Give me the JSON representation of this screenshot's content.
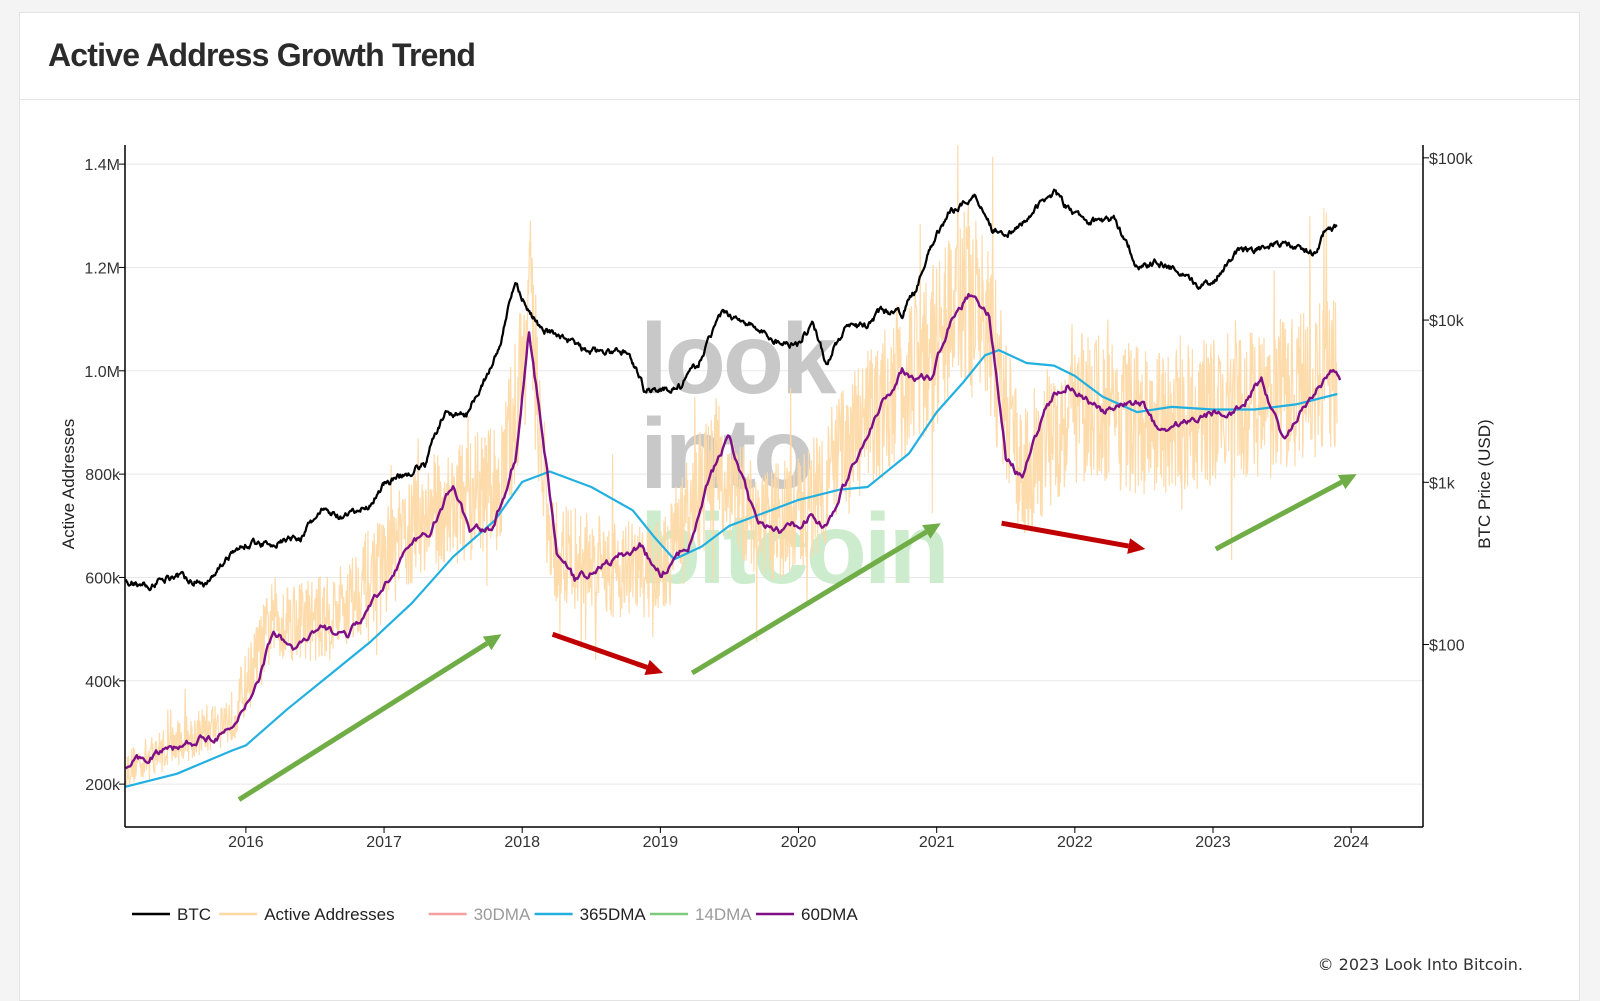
{
  "page": {
    "title": "Active Address Growth Trend",
    "copyright": "© 2023 Look Into Bitcoin."
  },
  "watermark": [
    "look",
    "into",
    "bitcoin"
  ],
  "colors": {
    "btc": "#000000",
    "active_addresses": "#fdd9a6",
    "dma30": "#f4a0a0",
    "dma365": "#22b0e0",
    "dma14": "#7fc97f",
    "dma60": "#7e0f86",
    "arrow_up": "#70ad47",
    "arrow_down": "#c00000",
    "grid": "#e8e8e8",
    "watermark_gray": "#c8c8c8",
    "watermark_green": "#cdeccd"
  },
  "chart_data": {
    "type": "line",
    "title": "Active Address Growth Trend",
    "xlabel": "",
    "ylabel": "Active Addresses",
    "y2label": "BTC Price (USD)",
    "x_ticks": [
      "2016",
      "2017",
      "2018",
      "2019",
      "2020",
      "2021",
      "2022",
      "2023",
      "2024"
    ],
    "x_range": [
      2015.125,
      2024.52
    ],
    "y_ticks": [
      200000,
      400000,
      600000,
      800000,
      1000000,
      1200000,
      1400000
    ],
    "y_tick_labels": [
      "200k",
      "400k",
      "600k",
      "800k",
      "1.0M",
      "1.2M",
      "1.4M"
    ],
    "ylim": [
      117000,
      1437000
    ],
    "y2_ticks": [
      100,
      1000,
      10000,
      100000
    ],
    "y2_tick_labels": [
      "$100",
      "$1k",
      "$10k",
      "$100k"
    ],
    "y2lim_log": [
      7.5,
      120000
    ],
    "y2_scale": "log",
    "grid": true,
    "legend_position": "bottom-left",
    "legend": [
      {
        "name": "BTC",
        "key": "btc",
        "visible": true
      },
      {
        "name": "Active Addresses",
        "key": "active_addresses",
        "visible": true
      },
      {
        "name": "30DMA",
        "key": "dma30",
        "visible": false
      },
      {
        "name": "365DMA",
        "key": "dma365",
        "visible": true
      },
      {
        "name": "14DMA",
        "key": "dma14",
        "visible": false
      },
      {
        "name": "60DMA",
        "key": "dma60",
        "visible": true
      }
    ],
    "series": [
      {
        "name": "BTC",
        "axis": "y2",
        "points": [
          [
            2015.13,
            245
          ],
          [
            2015.3,
            230
          ],
          [
            2015.5,
            270
          ],
          [
            2015.7,
            235
          ],
          [
            2015.85,
            330
          ],
          [
            2016.0,
            420
          ],
          [
            2016.2,
            420
          ],
          [
            2016.4,
            460
          ],
          [
            2016.55,
            670
          ],
          [
            2016.7,
            600
          ],
          [
            2016.9,
            720
          ],
          [
            2017.0,
            980
          ],
          [
            2017.15,
            1120
          ],
          [
            2017.3,
            1300
          ],
          [
            2017.45,
            2700
          ],
          [
            2017.6,
            2600
          ],
          [
            2017.75,
            4600
          ],
          [
            2017.85,
            7000
          ],
          [
            2017.95,
            17000
          ],
          [
            2018.05,
            11000
          ],
          [
            2018.15,
            8500
          ],
          [
            2018.3,
            8000
          ],
          [
            2018.45,
            6500
          ],
          [
            2018.6,
            6300
          ],
          [
            2018.75,
            6500
          ],
          [
            2018.88,
            3800
          ],
          [
            2019.0,
            3700
          ],
          [
            2019.15,
            3900
          ],
          [
            2019.3,
            5800
          ],
          [
            2019.45,
            11000
          ],
          [
            2019.6,
            10000
          ],
          [
            2019.75,
            8200
          ],
          [
            2019.85,
            7300
          ],
          [
            2020.0,
            7200
          ],
          [
            2020.1,
            9500
          ],
          [
            2020.2,
            5300
          ],
          [
            2020.35,
            9000
          ],
          [
            2020.5,
            9200
          ],
          [
            2020.6,
            11500
          ],
          [
            2020.75,
            11000
          ],
          [
            2020.85,
            15500
          ],
          [
            2020.97,
            29000
          ],
          [
            2021.1,
            47000
          ],
          [
            2021.28,
            58000
          ],
          [
            2021.4,
            37000
          ],
          [
            2021.55,
            34000
          ],
          [
            2021.7,
            47000
          ],
          [
            2021.85,
            62000
          ],
          [
            2021.95,
            48000
          ],
          [
            2022.1,
            40000
          ],
          [
            2022.28,
            42000
          ],
          [
            2022.45,
            21000
          ],
          [
            2022.6,
            23000
          ],
          [
            2022.75,
            19500
          ],
          [
            2022.87,
            16500
          ],
          [
            2023.0,
            17000
          ],
          [
            2023.2,
            28000
          ],
          [
            2023.35,
            27500
          ],
          [
            2023.5,
            30000
          ],
          [
            2023.65,
            26500
          ],
          [
            2023.75,
            26000
          ],
          [
            2023.8,
            34000
          ],
          [
            2023.9,
            37500
          ]
        ]
      },
      {
        "name": "365DMA",
        "axis": "y",
        "points": [
          [
            2015.13,
            195000
          ],
          [
            2015.5,
            220000
          ],
          [
            2015.9,
            265000
          ],
          [
            2016.0,
            275000
          ],
          [
            2016.3,
            345000
          ],
          [
            2016.6,
            410000
          ],
          [
            2016.9,
            475000
          ],
          [
            2017.2,
            550000
          ],
          [
            2017.5,
            640000
          ],
          [
            2017.8,
            710000
          ],
          [
            2018.0,
            785000
          ],
          [
            2018.2,
            805000
          ],
          [
            2018.5,
            775000
          ],
          [
            2018.8,
            730000
          ],
          [
            2018.95,
            680000
          ],
          [
            2019.1,
            635000
          ],
          [
            2019.3,
            660000
          ],
          [
            2019.5,
            700000
          ],
          [
            2019.8,
            730000
          ],
          [
            2020.0,
            750000
          ],
          [
            2020.3,
            770000
          ],
          [
            2020.5,
            775000
          ],
          [
            2020.8,
            840000
          ],
          [
            2021.0,
            920000
          ],
          [
            2021.2,
            980000
          ],
          [
            2021.35,
            1030000
          ],
          [
            2021.45,
            1040000
          ],
          [
            2021.65,
            1015000
          ],
          [
            2021.85,
            1010000
          ],
          [
            2022.0,
            990000
          ],
          [
            2022.2,
            950000
          ],
          [
            2022.45,
            920000
          ],
          [
            2022.7,
            930000
          ],
          [
            2023.0,
            925000
          ],
          [
            2023.3,
            925000
          ],
          [
            2023.6,
            935000
          ],
          [
            2023.9,
            955000
          ]
        ]
      },
      {
        "name": "60DMA",
        "axis": "y",
        "points": [
          [
            2015.13,
            235000
          ],
          [
            2015.3,
            255000
          ],
          [
            2015.5,
            270000
          ],
          [
            2015.7,
            290000
          ],
          [
            2015.9,
            300000
          ],
          [
            2016.1,
            410000
          ],
          [
            2016.2,
            500000
          ],
          [
            2016.35,
            460000
          ],
          [
            2016.55,
            500000
          ],
          [
            2016.75,
            490000
          ],
          [
            2016.95,
            560000
          ],
          [
            2017.15,
            650000
          ],
          [
            2017.35,
            695000
          ],
          [
            2017.5,
            780000
          ],
          [
            2017.62,
            690000
          ],
          [
            2017.8,
            700000
          ],
          [
            2017.95,
            830000
          ],
          [
            2018.05,
            1075000
          ],
          [
            2018.15,
            870000
          ],
          [
            2018.25,
            650000
          ],
          [
            2018.38,
            595000
          ],
          [
            2018.6,
            625000
          ],
          [
            2018.85,
            660000
          ],
          [
            2019.0,
            605000
          ],
          [
            2019.2,
            660000
          ],
          [
            2019.35,
            790000
          ],
          [
            2019.5,
            870000
          ],
          [
            2019.7,
            700000
          ],
          [
            2019.9,
            690000
          ],
          [
            2020.1,
            720000
          ],
          [
            2020.2,
            695000
          ],
          [
            2020.35,
            790000
          ],
          [
            2020.6,
            930000
          ],
          [
            2020.75,
            1000000
          ],
          [
            2020.95,
            980000
          ],
          [
            2021.1,
            1100000
          ],
          [
            2021.25,
            1150000
          ],
          [
            2021.38,
            1110000
          ],
          [
            2021.5,
            830000
          ],
          [
            2021.62,
            790000
          ],
          [
            2021.8,
            940000
          ],
          [
            2021.95,
            975000
          ],
          [
            2022.2,
            920000
          ],
          [
            2022.5,
            940000
          ],
          [
            2022.6,
            885000
          ],
          [
            2022.85,
            905000
          ],
          [
            2023.0,
            920000
          ],
          [
            2023.2,
            925000
          ],
          [
            2023.35,
            985000
          ],
          [
            2023.5,
            870000
          ],
          [
            2023.6,
            900000
          ],
          [
            2023.75,
            960000
          ],
          [
            2023.85,
            995000
          ],
          [
            2023.92,
            985000
          ]
        ]
      },
      {
        "name": "Active Addresses",
        "axis": "y",
        "points": [
          [
            2015.13,
            230000
          ],
          [
            2015.5,
            280000
          ],
          [
            2015.9,
            330000
          ],
          [
            2016.2,
            520000
          ],
          [
            2016.6,
            520000
          ],
          [
            2016.9,
            600000
          ],
          [
            2017.3,
            720000
          ],
          [
            2017.6,
            750000
          ],
          [
            2017.85,
            780000
          ],
          [
            2018.0,
            1000000
          ],
          [
            2018.05,
            1150000
          ],
          [
            2018.2,
            650000
          ],
          [
            2018.6,
            620000
          ],
          [
            2019.0,
            610000
          ],
          [
            2019.4,
            820000
          ],
          [
            2019.7,
            700000
          ],
          [
            2020.0,
            720000
          ],
          [
            2020.5,
            900000
          ],
          [
            2021.0,
            1050000
          ],
          [
            2021.2,
            1160000
          ],
          [
            2021.4,
            1050000
          ],
          [
            2021.6,
            800000
          ],
          [
            2022.0,
            930000
          ],
          [
            2022.6,
            900000
          ],
          [
            2023.0,
            920000
          ],
          [
            2023.4,
            940000
          ],
          [
            2023.9,
            1000000
          ]
        ]
      }
    ],
    "annotations": [
      {
        "type": "arrow",
        "color": "up",
        "from": [
          2015.95,
          170000
        ],
        "to": [
          2017.85,
          490000
        ]
      },
      {
        "type": "arrow",
        "color": "down",
        "from": [
          2018.22,
          490000
        ],
        "to": [
          2019.02,
          415000
        ]
      },
      {
        "type": "arrow",
        "color": "up",
        "from": [
          2019.23,
          415000
        ],
        "to": [
          2021.03,
          705000
        ]
      },
      {
        "type": "arrow",
        "color": "down",
        "from": [
          2021.47,
          705000
        ],
        "to": [
          2022.51,
          655000
        ]
      },
      {
        "type": "arrow",
        "color": "up",
        "from": [
          2023.02,
          655000
        ],
        "to": [
          2024.04,
          800000
        ]
      }
    ]
  }
}
